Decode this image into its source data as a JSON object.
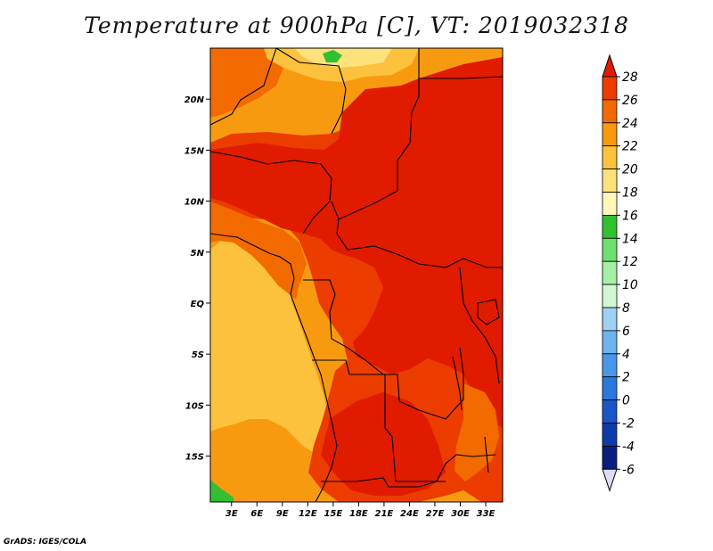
{
  "title": "Temperature at 900hPa [C], VT: 2019032318",
  "credit": "GrADS: IGES/COLA",
  "map": {
    "lat_labels": [
      "20N",
      "15N",
      "10N",
      "5N",
      "EQ",
      "5S",
      "10S",
      "15S"
    ],
    "lat_values": [
      20,
      15,
      10,
      5,
      0,
      -5,
      -10,
      -15
    ],
    "lon_labels": [
      "3E",
      "6E",
      "9E",
      "12E",
      "15E",
      "18E",
      "21E",
      "24E",
      "27E",
      "30E",
      "33E"
    ],
    "lon_values": [
      3,
      6,
      9,
      12,
      15,
      18,
      21,
      24,
      27,
      30,
      33
    ],
    "lon_range": [
      0.5,
      35
    ],
    "lat_range": [
      -19.5,
      25
    ]
  },
  "colorbar": {
    "labels": [
      "28",
      "26",
      "24",
      "22",
      "20",
      "18",
      "16",
      "14",
      "12",
      "10",
      "8",
      "6",
      "4",
      "2",
      "0",
      "-2",
      "-4",
      "-6"
    ],
    "colors": [
      "#e11b00",
      "#ec3c00",
      "#f26a00",
      "#f89a10",
      "#fcc23e",
      "#fde27c",
      "#fff6b8",
      "#30c030",
      "#6ee06e",
      "#a6f0a6",
      "#d2f8d2",
      "#9ed0f4",
      "#6eb2ee",
      "#4a96e8",
      "#2a78de",
      "#1a56c8",
      "#103aa8",
      "#0a1e80",
      "#060a4e"
    ],
    "over_color": "#e11b00",
    "under_color": "#dcdcf4"
  }
}
